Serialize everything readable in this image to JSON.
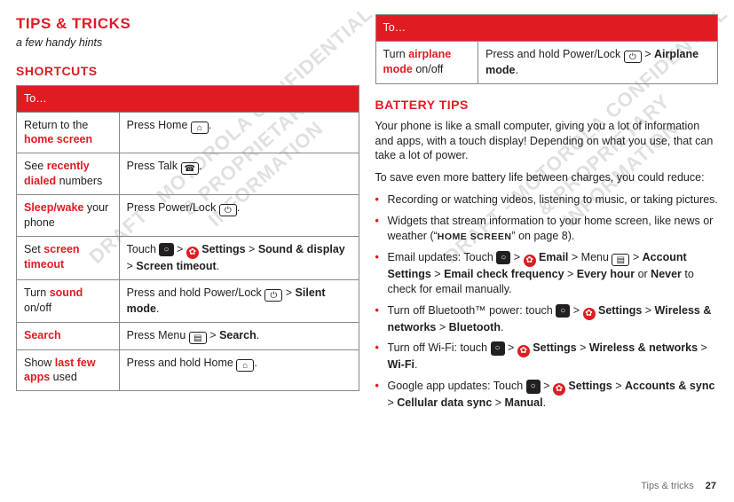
{
  "watermark": "DRAFT - MOTOROLA CONFIDENTIAL\n& PROPRIETARY\nINFORMATION",
  "left": {
    "title": "TIPS & TRICKS",
    "subtitle": "a few handy hints",
    "section": "SHORTCUTS",
    "header": "To…",
    "rows": [
      {
        "c1_pre": "Return to the ",
        "c1_kw": "home screen",
        "c1_post": "",
        "c2_pre": "Press Home ",
        "c2_icon": "⌂",
        "c2_post": "."
      },
      {
        "c1_pre": "See ",
        "c1_kw": "recently dialed",
        "c1_post": " numbers",
        "c2_pre": "Press Talk ",
        "c2_icon": "☎",
        "c2_post": "."
      },
      {
        "c1_pre": "",
        "c1_kw": "Sleep/wake",
        "c1_post": " your phone",
        "c2_pre": "Press Power/Lock ",
        "c2_icon": "⏻",
        "c2_post": "."
      },
      {
        "c1_pre": "Set ",
        "c1_kw": "screen timeout",
        "c1_post": "",
        "c2_html_parts": [
          "Touch ",
          "HOMECHIP",
          " > ",
          "GEAR",
          " ",
          {
            "b": "Settings"
          },
          " > ",
          {
            "b": "Sound & display"
          },
          " > ",
          {
            "b": "Screen timeout"
          },
          "."
        ]
      },
      {
        "c1_pre": "Turn ",
        "c1_kw": "sound",
        "c1_post": " on/off",
        "c2_html_parts": [
          "Press and hold Power/Lock ",
          "POWER",
          " > ",
          {
            "b": "Silent mode"
          },
          "."
        ]
      },
      {
        "c1_pre": "",
        "c1_kw": "Search",
        "c1_post": "",
        "c2_html_parts": [
          "Press Menu ",
          "MENU",
          " > ",
          {
            "b": "Search"
          },
          "."
        ]
      },
      {
        "c1_pre": "Show ",
        "c1_kw": "last few apps",
        "c1_post": " used",
        "c2_pre": "Press and hold Home ",
        "c2_icon": "⌂",
        "c2_post": "."
      }
    ]
  },
  "right": {
    "header": "To…",
    "row": {
      "c1_pre": "Turn ",
      "c1_kw": "airplane mode",
      "c1_post": " on/off",
      "c2_html_parts": [
        "Press and hold Power/Lock ",
        "POWER",
        " > ",
        {
          "b": "Airplane mode"
        },
        "."
      ]
    },
    "section": "BATTERY TIPS",
    "p1": "Your phone is like a small computer, giving you a lot of information and apps, with a touch display! Depending on what you use, that can take a lot of power.",
    "p2": "To save even more battery life between charges, you could reduce:",
    "bullets": [
      {
        "parts": [
          "Recording or watching videos, listening to music, or taking pictures."
        ]
      },
      {
        "parts": [
          "Widgets that stream information to your home screen, like news or weather (“",
          {
            "sc": "HOME SCREEN"
          },
          "” on page 8)."
        ]
      },
      {
        "parts": [
          "Email updates: Touch ",
          "HOMECHIP",
          " > ",
          "GEAR",
          " ",
          {
            "b": "Email"
          },
          " > Menu ",
          "MENU",
          " > ",
          {
            "b": "Account Settings"
          },
          " > ",
          {
            "b": "Email check frequency"
          },
          " > ",
          {
            "b": "Every hour"
          },
          " or ",
          {
            "b": "Never"
          },
          " to check for email manually."
        ]
      },
      {
        "parts": [
          "Turn off Bluetooth™ power: touch ",
          "HOMECHIP",
          " > ",
          "GEAR",
          " ",
          {
            "b": "Settings"
          },
          " > ",
          {
            "b": "Wireless & networks"
          },
          " > ",
          {
            "b": "Bluetooth"
          },
          "."
        ]
      },
      {
        "parts": [
          "Turn off Wi-Fi: touch ",
          "HOMECHIP",
          " > ",
          "GEAR",
          " ",
          {
            "b": "Settings"
          },
          " > ",
          {
            "b": "Wireless & networks"
          },
          " > ",
          {
            "b": "Wi-Fi"
          },
          "."
        ]
      },
      {
        "parts": [
          "Google app updates: Touch ",
          "HOMECHIP",
          " > ",
          "GEAR",
          " ",
          {
            "b": "Settings"
          },
          " > ",
          {
            "b": "Accounts & sync"
          },
          " > ",
          {
            "b": "Cellular data sync"
          },
          " > ",
          {
            "b": "Manual"
          },
          "."
        ]
      }
    ]
  },
  "footer": {
    "label": "Tips & tricks",
    "page": "27"
  },
  "icons": {
    "power": "⏻",
    "menu": "▤",
    "home_chip": "○"
  }
}
